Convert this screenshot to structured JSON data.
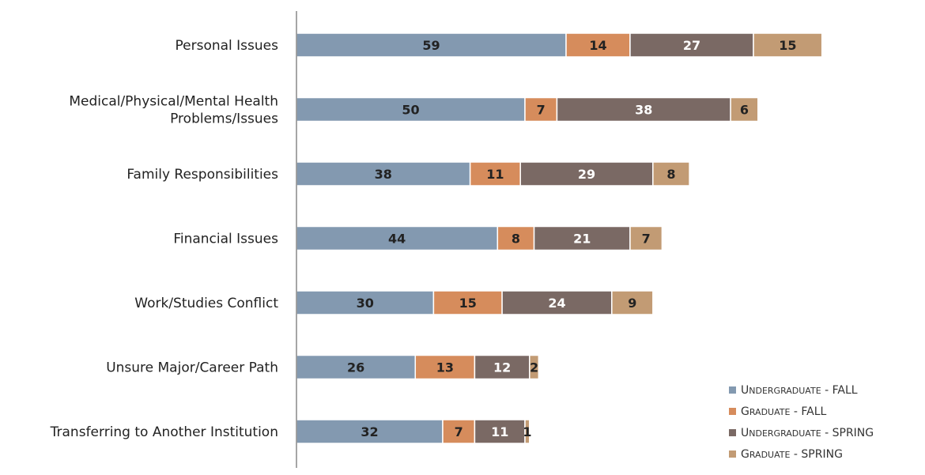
{
  "chart_data": {
    "type": "bar",
    "orientation": "horizontal",
    "stacked": true,
    "title": "",
    "xlabel": "",
    "ylabel": "",
    "grid": false,
    "legend_position": "bottom-right",
    "categories": [
      "Personal Issues",
      "Medical/Physical/Mental Health Problems/Issues",
      "Family Responsibilities",
      "Financial Issues",
      "Work/Studies Conflict",
      "Unsure Major/Career Path",
      "Transferring to Another Institution"
    ],
    "series": [
      {
        "name": "UNDERGRADUATE - FALL",
        "legend_label": "Undergraduate - FALL",
        "color": "#8399b0",
        "label_color": "#222222",
        "values": [
          59,
          50,
          38,
          44,
          30,
          26,
          32
        ]
      },
      {
        "name": "GRADUATE - FALL",
        "legend_label": "Graduate - FALL",
        "color": "#d68c5c",
        "label_color": "#222222",
        "values": [
          14,
          7,
          11,
          8,
          15,
          13,
          7
        ]
      },
      {
        "name": "UNDERGRADUATE - SPRING",
        "legend_label": "Undergraduate - SPRING",
        "color": "#7a6964",
        "label_color": "#ffffff",
        "values": [
          27,
          38,
          29,
          21,
          24,
          12,
          11
        ]
      },
      {
        "name": "GRADUATE - SPRING",
        "legend_label": "Graduate - SPRING",
        "color": "#c29b74",
        "label_color": "#222222",
        "values": [
          15,
          6,
          8,
          7,
          9,
          2,
          1
        ]
      }
    ]
  }
}
